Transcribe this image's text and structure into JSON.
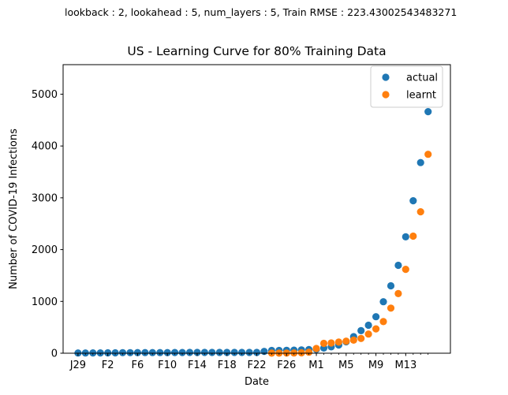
{
  "suptitle": "lookback : 2, lookahead : 5, num_layers : 5, Train RMSE : 223.43002543483271",
  "chart_data": {
    "type": "scatter",
    "title": "US - Learning Curve for 80% Training Data",
    "xlabel": "Date",
    "ylabel": "Number of COVID-19 Infections",
    "xlim": [
      -2,
      50
    ],
    "ylim": [
      0,
      5570
    ],
    "yticks": [
      0,
      1000,
      2000,
      3000,
      4000,
      5000
    ],
    "xticks": [
      {
        "pos": 0,
        "label": "J29"
      },
      {
        "pos": 4,
        "label": "F2"
      },
      {
        "pos": 8,
        "label": "F6"
      },
      {
        "pos": 12,
        "label": "F10"
      },
      {
        "pos": 16,
        "label": "F14"
      },
      {
        "pos": 20,
        "label": "F18"
      },
      {
        "pos": 24,
        "label": "F22"
      },
      {
        "pos": 28,
        "label": "F26"
      },
      {
        "pos": 32,
        "label": "M1"
      },
      {
        "pos": 36,
        "label": "M5"
      },
      {
        "pos": 40,
        "label": "M9"
      },
      {
        "pos": 44,
        "label": "M13"
      }
    ],
    "minor_ticks": [
      1,
      2,
      3,
      5,
      6,
      7,
      9,
      10,
      11,
      13,
      14,
      15,
      17,
      18,
      19,
      21,
      22,
      23,
      25,
      26,
      27,
      29,
      30,
      31,
      33,
      34,
      35,
      37,
      38,
      39,
      41,
      42,
      43,
      45,
      46,
      47
    ],
    "legend_position": "top-right",
    "series": [
      {
        "name": "actual",
        "color": "#1f77b4",
        "x": [
          0,
          1,
          2,
          3,
          4,
          5,
          6,
          7,
          8,
          9,
          10,
          11,
          12,
          13,
          14,
          15,
          16,
          17,
          18,
          19,
          20,
          21,
          22,
          23,
          24,
          25,
          26,
          27,
          28,
          29,
          30,
          31,
          32,
          33,
          34,
          35,
          36,
          37,
          38,
          39,
          40,
          41,
          42,
          43,
          44,
          45,
          46,
          47
        ],
        "y": [
          5,
          5,
          6,
          6,
          8,
          8,
          11,
          11,
          12,
          12,
          12,
          12,
          12,
          13,
          13,
          15,
          15,
          15,
          15,
          15,
          15,
          15,
          15,
          15,
          15,
          35,
          53,
          53,
          57,
          60,
          64,
          70,
          75,
          100,
          124,
          158,
          221,
          319,
          435,
          541,
          704,
          994,
          1301,
          1697,
          2247,
          2943,
          3680,
          4663
        ]
      },
      {
        "name": "learnt",
        "color": "#ff7f0e",
        "x": [
          26,
          27,
          28,
          29,
          30,
          31,
          32,
          33,
          34,
          35,
          36,
          37,
          38,
          39,
          40,
          41,
          42,
          43,
          44,
          45,
          46,
          47
        ],
        "y": [
          1,
          2,
          3,
          5,
          8,
          20,
          92,
          190,
          198,
          215,
          233,
          252,
          285,
          370,
          470,
          610,
          870,
          1150,
          1620,
          2260,
          2730,
          3840
        ]
      }
    ]
  }
}
